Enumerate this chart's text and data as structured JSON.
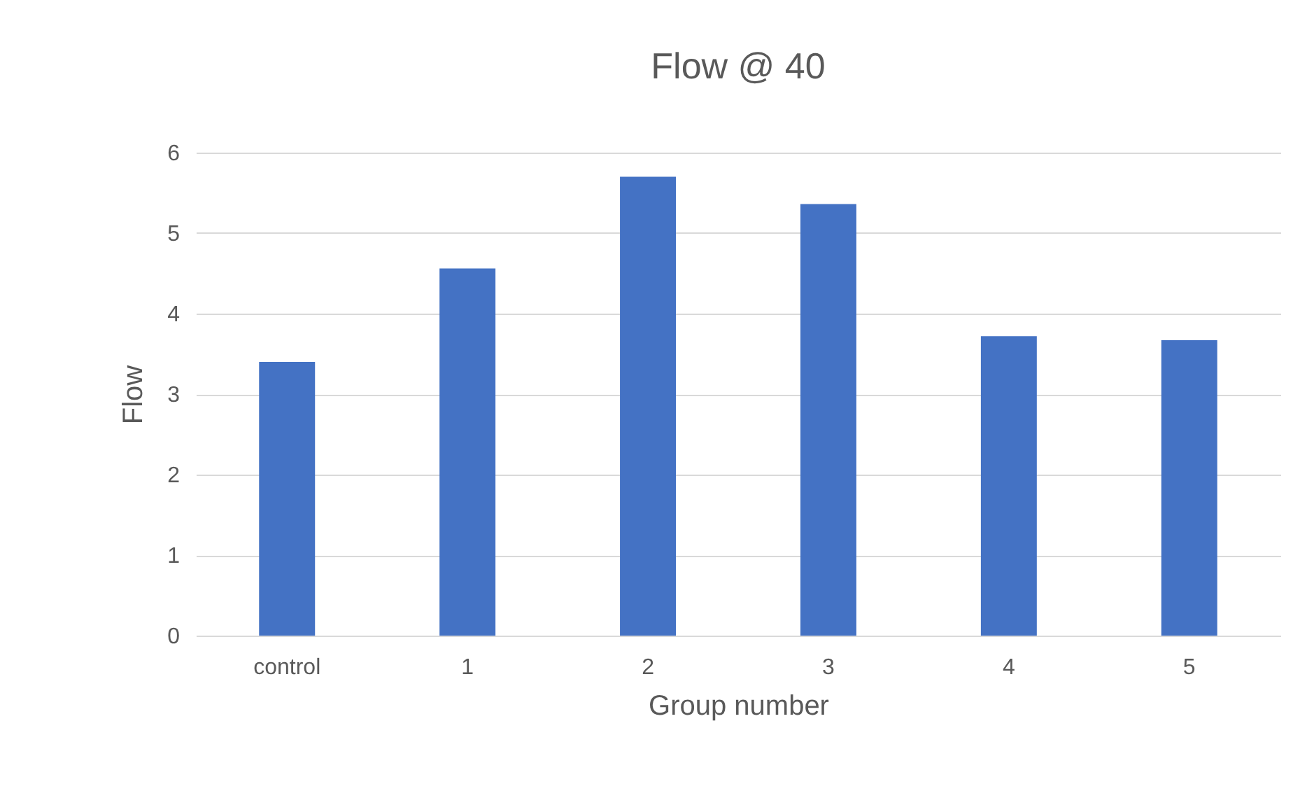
{
  "chart_data": {
    "type": "bar",
    "title": "Flow @ 40",
    "xlabel": "Group number",
    "ylabel": "Flow",
    "categories": [
      "control",
      "1",
      "2",
      "3",
      "4",
      "5"
    ],
    "values": [
      3.4,
      4.56,
      5.7,
      5.36,
      3.72,
      3.67
    ],
    "color": "#4472c4",
    "ylim": [
      0,
      6
    ],
    "yticks": [
      0,
      1,
      2,
      3,
      4,
      5,
      6
    ],
    "grid": "y"
  }
}
